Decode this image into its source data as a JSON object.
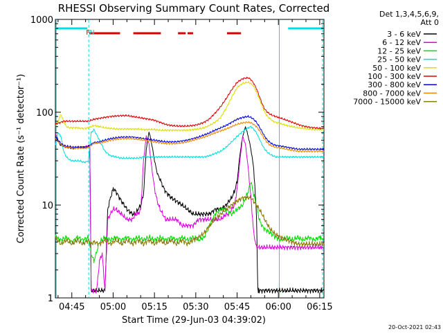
{
  "chart_data": {
    "type": "line",
    "title": "RHESSI Observing Summary Count Rates, Corrected",
    "xlabel": "Start Time (29-Jun-03 04:39:02)",
    "ylabel": "Corrected Count Rate (s⁻¹ detector⁻¹)",
    "ylog": true,
    "ylim": [
      1,
      1000
    ],
    "xlim_minutes": [
      0,
      97.5
    ],
    "x_ticks": [
      {
        "label": "04:45",
        "min": 5.97
      },
      {
        "label": "05:00",
        "min": 20.97
      },
      {
        "label": "05:15",
        "min": 35.97
      },
      {
        "label": "05:30",
        "min": 50.97
      },
      {
        "label": "05:45",
        "min": 65.97
      },
      {
        "label": "06:00",
        "min": 80.97
      },
      {
        "label": "06:15",
        "min": 95.97
      }
    ],
    "y_ticks": [
      {
        "label": "1",
        "value": 1
      },
      {
        "label": "10",
        "value": 10
      },
      {
        "label": "100",
        "value": 100
      },
      {
        "label": "1000",
        "value": 1000
      }
    ],
    "legend_header": [
      "Det 1,3,4,5,6,9,",
      "Att 0"
    ],
    "series": [
      {
        "name": "3 - 6 keV",
        "color": "#000000",
        "x": [
          0,
          1,
          2,
          3,
          4,
          5,
          6,
          7,
          8,
          9,
          10,
          11,
          12,
          12.5,
          13,
          14,
          15,
          16,
          17,
          18,
          19,
          20,
          21,
          22,
          24,
          26,
          28,
          29,
          30,
          31,
          32,
          33,
          34,
          35,
          36,
          37,
          38,
          39,
          40,
          42,
          44,
          46,
          48,
          50,
          52,
          54,
          56,
          58,
          60,
          62,
          63,
          64,
          65,
          66,
          67,
          68,
          69,
          70,
          71,
          72,
          73,
          73.5,
          74,
          75,
          76,
          77,
          78,
          79,
          80,
          82,
          84,
          86,
          88,
          90,
          92,
          94,
          96,
          97.5
        ],
        "y": [
          55,
          48,
          44,
          43,
          42,
          42,
          41,
          41,
          42,
          42,
          42,
          42,
          43,
          43,
          1.2,
          1.2,
          1.2,
          1.2,
          1.2,
          1.2,
          9,
          12,
          15,
          14,
          11,
          9,
          8,
          8,
          9,
          10,
          13,
          40,
          62,
          45,
          30,
          22,
          19,
          16,
          14,
          12,
          11,
          10,
          9,
          8,
          8,
          8,
          8,
          9,
          9,
          10,
          11,
          12,
          14,
          18,
          35,
          55,
          70,
          55,
          40,
          25,
          8,
          1.2,
          1.2,
          1.2,
          1.2,
          1.2,
          1.2,
          1.2,
          1.2,
          1.2,
          1.2,
          1.2,
          1.2,
          1.2,
          1.2,
          1.2,
          1.2,
          1.2
        ]
      },
      {
        "name": "6 - 12 keV",
        "color": "#dd00dd",
        "x": [
          0,
          1,
          2,
          3,
          4,
          5,
          6,
          7,
          8,
          9,
          10,
          11,
          12,
          12.5,
          13,
          14,
          15,
          16,
          17,
          18,
          19,
          20,
          21,
          22,
          24,
          26,
          28,
          29,
          30,
          31,
          32,
          33,
          34,
          35,
          36,
          37,
          38,
          39,
          40,
          42,
          44,
          46,
          48,
          50,
          52,
          54,
          56,
          58,
          60,
          62,
          63,
          64,
          65,
          66,
          67,
          68,
          69,
          70,
          71,
          72,
          73,
          74,
          75,
          76,
          77,
          78,
          79,
          80,
          82,
          84,
          86,
          88,
          90,
          92,
          94,
          96,
          97.5
        ],
        "y": [
          60,
          50,
          46,
          44,
          42,
          42,
          42,
          42,
          42,
          42,
          42,
          43,
          43,
          44,
          1.2,
          1.2,
          1.2,
          2.5,
          3,
          1.2,
          7,
          8,
          9,
          9,
          8,
          7,
          7,
          8,
          8,
          9,
          30,
          55,
          45,
          25,
          15,
          11,
          9,
          8,
          7,
          7,
          7,
          6,
          6,
          6,
          7,
          7,
          7,
          7,
          7,
          8,
          8,
          9,
          10,
          15,
          30,
          55,
          45,
          25,
          12,
          5,
          3.5,
          3.5,
          3.5,
          3.5,
          3.5,
          3.5,
          3.5,
          3.5,
          3.5,
          3.5,
          3.5,
          3.5,
          3.5,
          3.5,
          3.5,
          3.5,
          3.5
        ]
      },
      {
        "name": "12 - 25 keV",
        "color": "#00dd00",
        "x": [
          0,
          2,
          4,
          6,
          8,
          10,
          12,
          13,
          14,
          16,
          18,
          20,
          22,
          24,
          26,
          28,
          30,
          32,
          34,
          36,
          38,
          40,
          42,
          44,
          46,
          48,
          50,
          52,
          54,
          56,
          58,
          60,
          62,
          64,
          66,
          68,
          70,
          71,
          72,
          73,
          74,
          75,
          76,
          78,
          80,
          82,
          84,
          86,
          88,
          90,
          92,
          94,
          96,
          97.5
        ],
        "y": [
          4.5,
          4.2,
          4.5,
          4.0,
          4.5,
          4.2,
          4.5,
          3.0,
          2.5,
          4.0,
          4.5,
          4.2,
          4.5,
          4.2,
          4.5,
          4.2,
          4.5,
          4.2,
          4.5,
          4.2,
          4.5,
          4.2,
          4.5,
          4.2,
          4.5,
          4.2,
          4.5,
          4.2,
          4.5,
          6,
          8,
          9,
          9,
          8,
          9,
          10,
          14,
          18,
          13,
          10,
          7,
          6,
          5.5,
          5,
          4.5,
          4.2,
          4.5,
          4.2,
          4.5,
          4.2,
          4.5,
          4.2,
          4.5,
          4.2
        ]
      },
      {
        "name": "25 - 50 keV",
        "color": "#00dddd",
        "x": [
          0,
          1,
          2,
          3,
          4,
          5,
          6,
          7,
          8,
          9,
          10,
          11,
          12,
          13,
          14,
          16,
          18,
          20,
          22,
          24,
          26,
          28,
          30,
          32,
          34,
          36,
          38,
          40,
          42,
          44,
          46,
          48,
          50,
          52,
          54,
          56,
          58,
          60,
          62,
          64,
          66,
          68,
          70,
          71,
          72,
          73,
          74,
          75,
          76,
          77,
          78,
          79,
          80,
          82,
          84,
          86,
          88,
          90,
          92,
          94,
          96,
          97.5
        ],
        "y": [
          45,
          60,
          55,
          38,
          33,
          31,
          30,
          30,
          30,
          30,
          29,
          29,
          30,
          60,
          65,
          50,
          38,
          34,
          33,
          32,
          32,
          32,
          32,
          33,
          33,
          33,
          33,
          33,
          33,
          33,
          33,
          33,
          33,
          33,
          33,
          34,
          36,
          38,
          42,
          48,
          55,
          62,
          68,
          70,
          66,
          60,
          52,
          45,
          40,
          37,
          35,
          34,
          33,
          33,
          33,
          33,
          33,
          33,
          33,
          33,
          33,
          33
        ]
      },
      {
        "name": "50 - 100 keV",
        "color": "#dddd00",
        "x": [
          0,
          1,
          2,
          3,
          4,
          5,
          6,
          7,
          8,
          9,
          10,
          11,
          12,
          13,
          14,
          16,
          18,
          20,
          22,
          24,
          26,
          28,
          30,
          32,
          34,
          36,
          38,
          40,
          42,
          44,
          46,
          48,
          50,
          52,
          54,
          56,
          58,
          60,
          62,
          64,
          66,
          68,
          70,
          71,
          72,
          73,
          74,
          75,
          76,
          77,
          78,
          79,
          80,
          82,
          84,
          86,
          88,
          90,
          92,
          94,
          96,
          97.5
        ],
        "y": [
          70,
          80,
          95,
          80,
          70,
          68,
          68,
          68,
          68,
          67,
          67,
          67,
          68,
          70,
          72,
          70,
          68,
          67,
          66,
          66,
          66,
          66,
          66,
          65,
          65,
          65,
          64,
          64,
          64,
          64,
          64,
          64,
          65,
          66,
          68,
          72,
          78,
          88,
          110,
          145,
          185,
          205,
          210,
          205,
          190,
          165,
          140,
          118,
          100,
          90,
          85,
          80,
          78,
          75,
          72,
          70,
          68,
          67,
          66,
          65,
          65,
          65
        ]
      },
      {
        "name": "100 - 300 keV",
        "color": "#dd0000",
        "x": [
          0,
          1,
          2,
          3,
          4,
          5,
          6,
          7,
          8,
          9,
          10,
          11,
          12,
          13,
          14,
          16,
          18,
          20,
          22,
          24,
          26,
          28,
          30,
          32,
          34,
          36,
          38,
          40,
          42,
          44,
          46,
          48,
          50,
          52,
          54,
          56,
          58,
          60,
          62,
          64,
          66,
          68,
          70,
          71,
          72,
          73,
          74,
          75,
          76,
          77,
          78,
          79,
          80,
          82,
          84,
          86,
          88,
          90,
          92,
          94,
          96,
          97.5
        ],
        "y": [
          75,
          76,
          78,
          80,
          80,
          80,
          80,
          80,
          80,
          80,
          80,
          80,
          80,
          82,
          84,
          86,
          88,
          90,
          91,
          92,
          92,
          90,
          88,
          86,
          84,
          82,
          78,
          74,
          72,
          71,
          71,
          71,
          72,
          74,
          78,
          85,
          98,
          115,
          140,
          175,
          210,
          230,
          235,
          225,
          205,
          180,
          150,
          125,
          108,
          100,
          95,
          92,
          90,
          86,
          82,
          78,
          74,
          71,
          69,
          68,
          67,
          67
        ]
      },
      {
        "name": "300 - 800 keV",
        "color": "#0000dd",
        "x": [
          0,
          1,
          2,
          3,
          4,
          5,
          6,
          7,
          8,
          9,
          10,
          11,
          12,
          13,
          14,
          16,
          18,
          20,
          22,
          24,
          26,
          28,
          30,
          32,
          34,
          36,
          38,
          40,
          42,
          44,
          46,
          48,
          50,
          52,
          54,
          56,
          58,
          60,
          62,
          64,
          66,
          68,
          70,
          71,
          72,
          73,
          74,
          75,
          76,
          77,
          78,
          79,
          80,
          82,
          84,
          86,
          88,
          90,
          92,
          94,
          96,
          97.5
        ],
        "y": [
          55,
          50,
          46,
          44,
          43,
          43,
          42,
          42,
          42,
          42,
          42,
          42,
          43,
          45,
          47,
          48,
          50,
          52,
          53,
          54,
          54,
          54,
          53,
          52,
          51,
          50,
          49,
          48,
          48,
          48,
          49,
          50,
          52,
          54,
          57,
          60,
          64,
          68,
          72,
          78,
          84,
          88,
          90,
          88,
          84,
          78,
          70,
          62,
          55,
          50,
          47,
          45,
          44,
          43,
          42,
          41,
          40,
          40,
          40,
          40,
          40,
          40
        ]
      },
      {
        "name": "800 - 7000 keV",
        "color": "#ee8800",
        "x": [
          0,
          1,
          2,
          3,
          4,
          5,
          6,
          7,
          8,
          9,
          10,
          11,
          12,
          13,
          14,
          16,
          18,
          20,
          22,
          24,
          26,
          28,
          30,
          32,
          34,
          36,
          38,
          40,
          42,
          44,
          46,
          48,
          50,
          52,
          54,
          56,
          58,
          60,
          62,
          64,
          66,
          68,
          70,
          71,
          72,
          73,
          74,
          75,
          76,
          77,
          78,
          79,
          80,
          82,
          84,
          86,
          88,
          90,
          92,
          94,
          96,
          97.5
        ],
        "y": [
          52,
          48,
          45,
          43,
          42,
          42,
          41,
          41,
          41,
          41,
          41,
          41,
          42,
          44,
          46,
          47,
          48,
          50,
          51,
          52,
          52,
          52,
          51,
          50,
          49,
          48,
          47,
          46,
          46,
          46,
          47,
          48,
          50,
          52,
          54,
          57,
          60,
          63,
          66,
          70,
          74,
          77,
          78,
          77,
          74,
          70,
          64,
          57,
          51,
          47,
          44,
          43,
          42,
          41,
          40,
          39,
          38,
          38,
          38,
          38,
          38,
          38
        ]
      },
      {
        "name": "7000 - 15000 keV",
        "color": "#887700",
        "x": [
          0,
          2,
          4,
          6,
          8,
          10,
          12,
          13,
          14,
          16,
          18,
          20,
          22,
          24,
          26,
          28,
          30,
          32,
          34,
          36,
          38,
          40,
          42,
          44,
          46,
          48,
          50,
          52,
          54,
          56,
          58,
          60,
          62,
          64,
          66,
          68,
          70,
          71,
          72,
          73,
          74,
          75,
          76,
          78,
          80,
          82,
          84,
          86,
          88,
          90,
          92,
          94,
          96,
          97.5
        ],
        "y": [
          4.5,
          3.8,
          4.2,
          3.8,
          4.2,
          3.8,
          4.2,
          3.8,
          4.0,
          3.8,
          4.2,
          3.8,
          4.2,
          3.8,
          4.2,
          3.8,
          4.2,
          3.8,
          4.2,
          3.8,
          4.2,
          3.8,
          4.2,
          3.8,
          4.2,
          3.8,
          4.2,
          4.5,
          5,
          6,
          7,
          8,
          9,
          10,
          11,
          12,
          12,
          12,
          11,
          10,
          9,
          8,
          7,
          5.5,
          4.8,
          4.5,
          4.2,
          4.0,
          3.8,
          3.8,
          3.8,
          3.8,
          3.8,
          3.8
        ]
      }
    ],
    "flag_bars": [
      {
        "name": "night",
        "color": "#00dddd",
        "intervals": [
          [
            0,
            11.6
          ],
          [
            84.5,
            97.5
          ]
        ]
      },
      {
        "name": "flare",
        "color": "#dd0000",
        "intervals": [
          [
            12.3,
            23.5
          ],
          [
            28.3,
            38.3
          ],
          [
            44.5,
            47.3
          ],
          [
            48.0,
            50.0
          ],
          [
            62.3,
            67.4
          ]
        ]
      }
    ],
    "flag_labels": [
      {
        "text": "F",
        "color": "#dd0000",
        "min": 11.6
      },
      {
        "text": "N",
        "color": "#00dddd",
        "min": 13.1
      }
    ],
    "vertical_lines": [
      {
        "color": "#00dddd",
        "min": 0.3,
        "style": "solid"
      },
      {
        "color": "#00dddd",
        "min": 12.1,
        "style": "dashed"
      },
      {
        "color": "#00dddd",
        "min": 81.3,
        "style": "solid"
      },
      {
        "color": "#00dddd",
        "min": 97.0,
        "style": "dashed"
      }
    ]
  },
  "timestamp": "20-Oct-2021 02:43"
}
